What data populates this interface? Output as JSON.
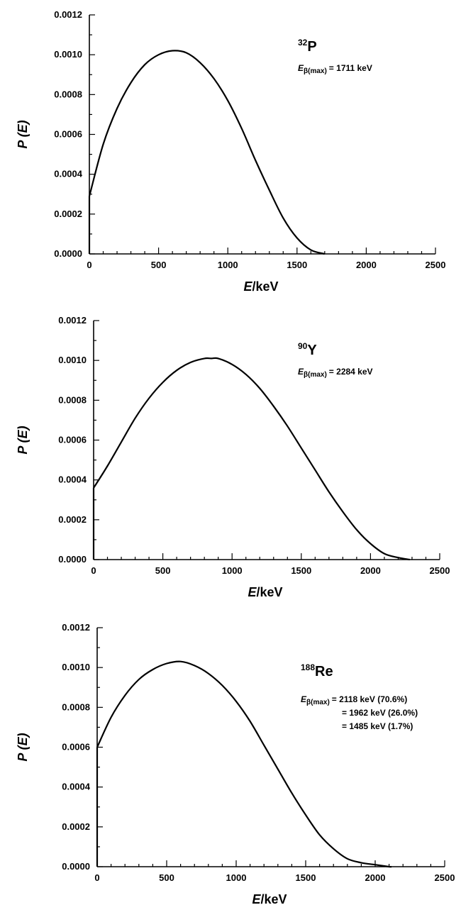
{
  "chart_data": [
    {
      "type": "line",
      "nuclide_mass": "32",
      "nuclide_symbol": "P",
      "emax_label": "E",
      "emax_sub": "β(max)",
      "emax_lines": [
        "= 1711 keV"
      ],
      "xlabel_italic": "E",
      "xlabel_rest": "/keV",
      "ylabel": "P (E)",
      "xlim": [
        0,
        2500
      ],
      "ylim": [
        0,
        0.0012
      ],
      "x_ticks": [
        "0",
        "500",
        "1000",
        "1500",
        "2000",
        "2500"
      ],
      "y_ticks": [
        "0.0000",
        "0.0002",
        "0.0004",
        "0.0006",
        "0.0008",
        "0.0010",
        "0.0012"
      ],
      "x_tick_values": [
        0,
        500,
        1000,
        1500,
        2000,
        2500
      ],
      "y_tick_values": [
        0,
        0.0002,
        0.0004,
        0.0006,
        0.0008,
        0.001,
        0.0012
      ],
      "series": [
        {
          "x": [
            0,
            100,
            200,
            300,
            400,
            500,
            600,
            700,
            800,
            900,
            1000,
            1100,
            1200,
            1300,
            1400,
            1500,
            1600,
            1700
          ],
          "y": [
            0.00029,
            0.00055,
            0.00073,
            0.00086,
            0.00095,
            0.001,
            0.00102,
            0.00101,
            0.00096,
            0.00088,
            0.00077,
            0.00063,
            0.00047,
            0.00032,
            0.00018,
            8e-05,
            2e-05,
            0.0
          ]
        }
      ]
    },
    {
      "type": "line",
      "nuclide_mass": "90",
      "nuclide_symbol": "Y",
      "emax_label": "E",
      "emax_sub": "β(max)",
      "emax_lines": [
        "= 2284 keV"
      ],
      "xlabel_italic": "E",
      "xlabel_rest": "/keV",
      "ylabel": "P (E)",
      "xlim": [
        0,
        2500
      ],
      "ylim": [
        0,
        0.0012
      ],
      "x_ticks": [
        "0",
        "500",
        "1000",
        "1500",
        "2000",
        "2500"
      ],
      "y_ticks": [
        "0.0000",
        "0.0002",
        "0.0004",
        "0.0006",
        "0.0008",
        "0.0010",
        "0.0012"
      ],
      "x_tick_values": [
        0,
        500,
        1000,
        1500,
        2000,
        2500
      ],
      "y_tick_values": [
        0,
        0.0002,
        0.0004,
        0.0006,
        0.0008,
        0.001,
        0.0012
      ],
      "series": [
        {
          "x": [
            0,
            100,
            200,
            300,
            400,
            500,
            600,
            700,
            800,
            850,
            900,
            1000,
            1100,
            1200,
            1300,
            1400,
            1500,
            1600,
            1700,
            1800,
            1900,
            2000,
            2100,
            2200,
            2284
          ],
          "y": [
            0.00036,
            0.00047,
            0.00059,
            0.00071,
            0.00081,
            0.00089,
            0.00095,
            0.00099,
            0.00101,
            0.00101,
            0.00101,
            0.00098,
            0.00093,
            0.00086,
            0.00077,
            0.00067,
            0.00056,
            0.00045,
            0.00034,
            0.00024,
            0.00015,
            8e-05,
            3e-05,
            1e-05,
            0.0
          ]
        }
      ]
    },
    {
      "type": "line",
      "nuclide_mass": "188",
      "nuclide_symbol": "Re",
      "emax_label": "E",
      "emax_sub": "β(max)",
      "emax_lines": [
        "= 2118 keV  (70.6%)",
        "= 1962 keV  (26.0%)",
        "= 1485 keV  (1.7%)"
      ],
      "xlabel_italic": "E",
      "xlabel_rest": "/keV",
      "ylabel": "P (E)",
      "xlim": [
        0,
        2500
      ],
      "ylim": [
        0,
        0.0012
      ],
      "x_ticks": [
        "0",
        "500",
        "1000",
        "1500",
        "2000",
        "2500"
      ],
      "y_ticks": [
        "0.0000",
        "0.0002",
        "0.0004",
        "0.0006",
        "0.0008",
        "0.0010",
        "0.0012"
      ],
      "x_tick_values": [
        0,
        500,
        1000,
        1500,
        2000,
        2500
      ],
      "y_tick_values": [
        0,
        0.0002,
        0.0004,
        0.0006,
        0.0008,
        0.001,
        0.0012
      ],
      "series": [
        {
          "x": [
            0,
            100,
            200,
            300,
            400,
            500,
            600,
            700,
            800,
            900,
            1000,
            1100,
            1200,
            1300,
            1400,
            1500,
            1600,
            1700,
            1800,
            1900,
            2000,
            2100,
            2118
          ],
          "y": [
            0.0006,
            0.00075,
            0.00086,
            0.00094,
            0.00099,
            0.00102,
            0.00103,
            0.00101,
            0.00097,
            0.00091,
            0.00083,
            0.00073,
            0.00061,
            0.00049,
            0.00037,
            0.00026,
            0.00016,
            9e-05,
            4e-05,
            2e-05,
            1e-05,
            0.0,
            0.0
          ]
        }
      ]
    }
  ]
}
